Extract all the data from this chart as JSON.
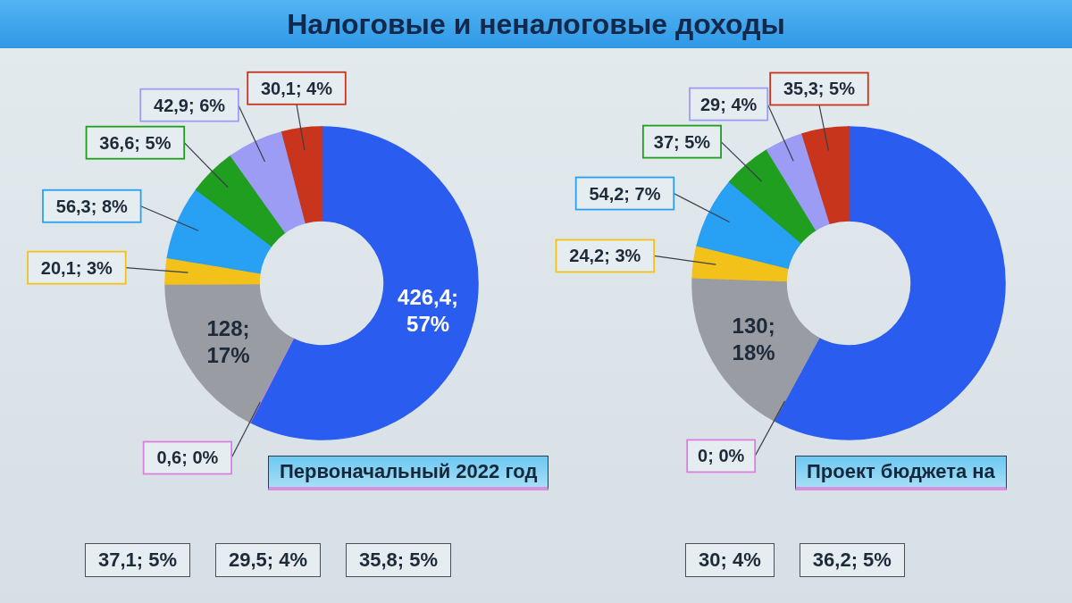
{
  "chart_data": [
    {
      "type": "donut",
      "title": "Налоговые и неналоговые доходы",
      "subtitle": "Первоначальный 2022 год",
      "categories": [
        null,
        null,
        null,
        null,
        null,
        null,
        null,
        null
      ],
      "values": [
        426.4,
        0.6,
        128,
        20.1,
        56.3,
        36.6,
        42.9,
        30.1
      ],
      "colors": [
        "#2a5cf0",
        "#d880e0",
        "#9a9ca4",
        "#f2c21a",
        "#28a0f4",
        "#1f9e1f",
        "#9c9cf4",
        "#c8341c"
      ],
      "value_labels": [
        "426,4; 57%",
        "0,6; 0%",
        "128; 17%",
        "20,1; 3%",
        "56,3; 8%",
        "36,6; 5%",
        "42,9; 6%",
        "30,1; 4%"
      ]
    },
    {
      "type": "donut",
      "subtitle": "Проект бюджета на",
      "categories": [
        null,
        null,
        null,
        null,
        null,
        null,
        null,
        null
      ],
      "values": [
        426,
        0,
        130,
        24.2,
        54.2,
        37,
        29,
        35.3
      ],
      "colors": [
        "#2a5cf0",
        "#d880e0",
        "#9a9ca4",
        "#f2c21a",
        "#28a0f4",
        "#1f9e1f",
        "#9c9cf4",
        "#c8341c"
      ],
      "value_labels": [
        null,
        "0; 0%",
        "130; 18%",
        "24,2; 3%",
        "54,2; 7%",
        "37; 5%",
        "29; 4%",
        "35,3; 5%"
      ]
    },
    {
      "type": "other",
      "annotations": [
        "37,1; 5%",
        "29,5; 4%",
        "35,8; 5%"
      ]
    },
    {
      "type": "other",
      "annotations": [
        "30; 4%",
        "36,2; 5%"
      ]
    }
  ]
}
